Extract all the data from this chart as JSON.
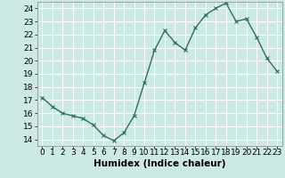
{
  "x": [
    0,
    1,
    2,
    3,
    4,
    5,
    6,
    7,
    8,
    9,
    10,
    11,
    12,
    13,
    14,
    15,
    16,
    17,
    18,
    19,
    20,
    21,
    22,
    23
  ],
  "y": [
    17.2,
    16.5,
    16.0,
    15.8,
    15.6,
    15.1,
    14.3,
    13.9,
    14.5,
    15.8,
    18.3,
    20.8,
    22.3,
    21.4,
    20.8,
    22.5,
    23.5,
    24.0,
    24.4,
    23.0,
    23.2,
    21.8,
    20.2,
    19.2
  ],
  "line_color": "#2e7060",
  "marker": "x",
  "marker_color": "#2e7060",
  "marker_size": 3,
  "xlabel": "Humidex (Indice chaleur)",
  "xlim": [
    -0.5,
    23.5
  ],
  "ylim": [
    13.5,
    24.5
  ],
  "yticks": [
    14,
    15,
    16,
    17,
    18,
    19,
    20,
    21,
    22,
    23,
    24
  ],
  "xticks": [
    0,
    1,
    2,
    3,
    4,
    5,
    6,
    7,
    8,
    9,
    10,
    11,
    12,
    13,
    14,
    15,
    16,
    17,
    18,
    19,
    20,
    21,
    22,
    23
  ],
  "background_color": "#cce9e5",
  "grid_color": "#ffffff",
  "xlabel_fontsize": 7.5,
  "tick_fontsize": 6.5,
  "line_width": 1.0
}
